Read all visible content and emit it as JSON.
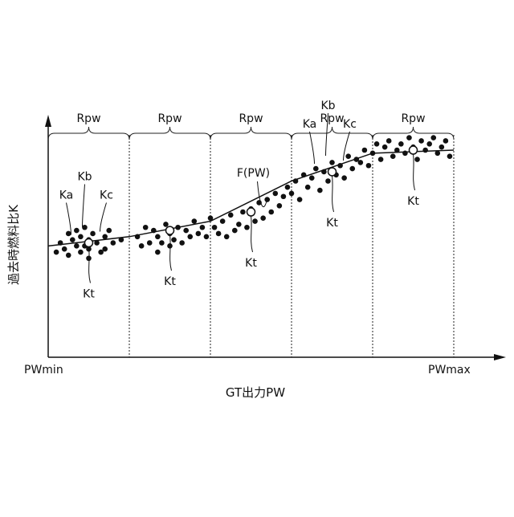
{
  "chart_data": {
    "type": "scatter",
    "title": "",
    "xlabel": "GT出力PW",
    "ylabel": "過去時燃料比K",
    "x_tick_labels": [
      "PWmin",
      "PWmax"
    ],
    "xlim": [
      0,
      100
    ],
    "ylim": [
      0,
      100
    ],
    "grid": false,
    "range_label": "Rpw",
    "range_boundaries": [
      0,
      20,
      40,
      60,
      80,
      100
    ],
    "fit_label": "F(PW)",
    "fit_line": {
      "x": [
        0,
        20,
        40,
        60,
        80,
        100
      ],
      "y": [
        49,
        52,
        57,
        70,
        79,
        80
      ]
    },
    "center_label": "Kt",
    "sample_labels": [
      "Ka",
      "Kb",
      "Kc"
    ],
    "series": [
      {
        "role": "measured-points",
        "x": [
          2,
          3,
          4,
          5,
          5,
          6,
          7,
          7,
          8,
          8,
          9,
          9,
          10,
          10,
          10,
          11,
          12,
          13,
          14,
          14,
          15,
          16,
          18,
          22,
          23,
          24,
          25,
          26,
          27,
          27,
          28,
          29,
          30,
          30,
          31,
          32,
          33,
          34,
          35,
          36,
          37,
          38,
          39,
          40,
          41,
          42,
          43,
          44,
          45,
          46,
          47,
          48,
          49,
          50,
          51,
          52,
          53,
          54,
          55,
          56,
          57,
          58,
          59,
          60,
          61,
          62,
          63,
          64,
          65,
          66,
          67,
          68,
          69,
          70,
          71,
          72,
          73,
          74,
          75,
          76,
          77,
          78,
          79,
          80,
          81,
          82,
          83,
          84,
          85,
          86,
          87,
          88,
          89,
          90,
          91,
          92,
          93,
          94,
          95,
          96,
          97,
          98,
          99
        ],
        "y": [
          47,
          50,
          48,
          53,
          46,
          51,
          49,
          54,
          47,
          52,
          49,
          55,
          45,
          51,
          48,
          53,
          50,
          47,
          52,
          48,
          54,
          50,
          51,
          52,
          49,
          55,
          50,
          54,
          47,
          52,
          50,
          56,
          49,
          53,
          51,
          55,
          50,
          54,
          52,
          57,
          53,
          55,
          52,
          58,
          55,
          53,
          57,
          52,
          59,
          54,
          56,
          60,
          55,
          61,
          57,
          63,
          58,
          64,
          60,
          66,
          62,
          65,
          68,
          66,
          70,
          64,
          72,
          68,
          71,
          74,
          67,
          73,
          70,
          76,
          72,
          75,
          71,
          78,
          74,
          77,
          76,
          80,
          75,
          79,
          82,
          77,
          81,
          83,
          78,
          80,
          82,
          79,
          84,
          81,
          77,
          83,
          80,
          82,
          84,
          79,
          81,
          83,
          78
        ]
      },
      {
        "role": "range-center-points",
        "x": [
          10,
          30,
          50,
          70,
          90
        ],
        "y": [
          50,
          54,
          60,
          73,
          80
        ]
      }
    ]
  }
}
